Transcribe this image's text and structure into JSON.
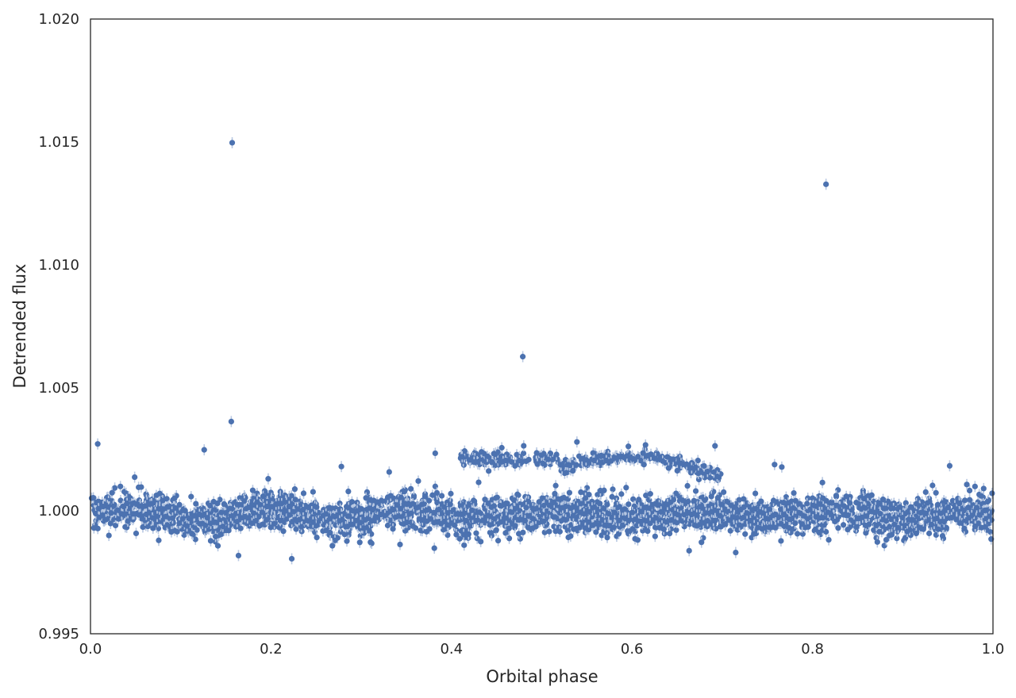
{
  "chart_data": {
    "type": "scatter",
    "title": "",
    "xlabel": "Orbital phase",
    "ylabel": "Detrended flux",
    "xlim": [
      0.0,
      1.0
    ],
    "ylim": [
      0.995,
      1.02
    ],
    "grid": false,
    "legend": "none",
    "x_ticks": [
      "0.0",
      "0.2",
      "0.4",
      "0.6",
      "0.8",
      "1.0"
    ],
    "y_ticks": [
      "0.995",
      "1.000",
      "1.005",
      "1.010",
      "1.015",
      "1.020"
    ],
    "colors": {
      "points": "#4c72b0",
      "errorbars": "#b8c8e2",
      "axes": "#262626"
    },
    "series": [
      {
        "marker": "circle-with-errorbars",
        "baseline_band": {
          "x_range": [
            0.0,
            1.0
          ],
          "center": 0.99985,
          "spread": 0.0005,
          "approx_points": 3000
        },
        "upper_arcs": [
          {
            "x_range": [
              0.41,
              0.52
            ],
            "center": 1.0021,
            "spread": 0.00015,
            "approx_points": 120
          },
          {
            "x_range": [
              0.52,
              0.7
            ],
            "peak": 1.0022,
            "approx_points": 200
          }
        ],
        "outliers": [
          {
            "x": 0.157,
            "y": 1.01497
          },
          {
            "x": 0.815,
            "y": 1.01328
          },
          {
            "x": 0.479,
            "y": 1.00627
          },
          {
            "x": 0.156,
            "y": 1.00363
          },
          {
            "x": 0.008,
            "y": 1.00272
          },
          {
            "x": 0.126,
            "y": 1.00248
          },
          {
            "x": 0.382,
            "y": 1.00234
          },
          {
            "x": 0.539,
            "y": 1.0028
          },
          {
            "x": 0.692,
            "y": 1.00264
          },
          {
            "x": 0.615,
            "y": 1.00268
          },
          {
            "x": 0.596,
            "y": 1.00262
          },
          {
            "x": 0.278,
            "y": 1.0018
          },
          {
            "x": 0.952,
            "y": 1.00183
          },
          {
            "x": 0.758,
            "y": 1.00188
          },
          {
            "x": 0.766,
            "y": 1.00178
          },
          {
            "x": 0.331,
            "y": 1.00158
          },
          {
            "x": 0.811,
            "y": 1.00115
          },
          {
            "x": 0.971,
            "y": 1.00107
          },
          {
            "x": 0.164,
            "y": 0.99818
          },
          {
            "x": 0.223,
            "y": 0.99805
          },
          {
            "x": 0.381,
            "y": 0.99848
          },
          {
            "x": 0.268,
            "y": 0.99858
          },
          {
            "x": 0.677,
            "y": 0.99872
          },
          {
            "x": 0.818,
            "y": 0.99882
          },
          {
            "x": 0.998,
            "y": 0.99885
          }
        ]
      }
    ]
  }
}
